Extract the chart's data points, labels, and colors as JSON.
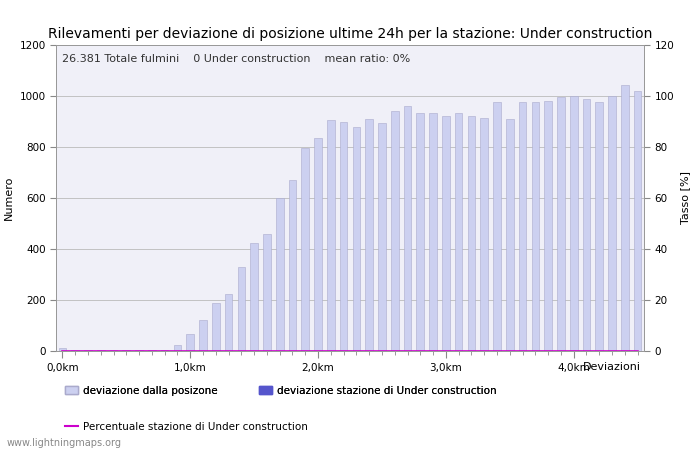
{
  "title": "Rilevamenti per deviazione di posizione ultime 24h per la stazione: Under construction",
  "subtitle_total": "26.381 Totale fulmini",
  "subtitle_station": "0 Under construction",
  "subtitle_ratio": "mean ratio: 0%",
  "xlabel": "Deviazioni",
  "ylabel_left": "Numero",
  "ylabel_right": "Tasso [%]",
  "xlim_left": -0.5,
  "xlim_right": 45.5,
  "ylim_left": [
    0,
    1200
  ],
  "ylim_right": [
    0,
    120
  ],
  "bar_values": [
    10,
    2,
    2,
    2,
    2,
    2,
    2,
    2,
    2,
    25,
    65,
    120,
    190,
    225,
    330,
    425,
    460,
    600,
    670,
    795,
    835,
    905,
    900,
    880,
    910,
    895,
    940,
    960,
    935,
    935,
    920,
    935,
    920,
    915,
    975,
    910,
    975,
    975,
    980,
    995,
    1000,
    990,
    975,
    1000,
    1045,
    1020
  ],
  "bar_color_light": "#ccd0f0",
  "bar_color_dark": "#5555cc",
  "bar_edge_color": "#aaaacc",
  "station_bar_values": [
    0,
    0,
    0,
    0,
    0,
    0,
    0,
    0,
    0,
    0,
    0,
    0,
    0,
    0,
    0,
    0,
    0,
    0,
    0,
    0,
    0,
    0,
    0,
    0,
    0,
    0,
    0,
    0,
    0,
    0,
    0,
    0,
    0,
    0,
    0,
    0,
    0,
    0,
    0,
    0,
    0,
    0,
    0,
    0,
    0,
    0
  ],
  "ratio_values": [
    0,
    0,
    0,
    0,
    0,
    0,
    0,
    0,
    0,
    0,
    0,
    0,
    0,
    0,
    0,
    0,
    0,
    0,
    0,
    0,
    0,
    0,
    0,
    0,
    0,
    0,
    0,
    0,
    0,
    0,
    0,
    0,
    0,
    0,
    0,
    0,
    0,
    0,
    0,
    0,
    0,
    0,
    0,
    0,
    0,
    0
  ],
  "xtick_positions": [
    0,
    10,
    20,
    30,
    40
  ],
  "xtick_labels": [
    "0,0km",
    "1,0km",
    "2,0km",
    "3,0km",
    "4,0km"
  ],
  "ytick_left": [
    0,
    200,
    400,
    600,
    800,
    1000,
    1200
  ],
  "ytick_right": [
    0,
    20,
    40,
    60,
    80,
    100,
    120
  ],
  "grid_color": "#bbbbbb",
  "watermark": "www.lightningmaps.org",
  "legend_label_light": "deviazione dalla posizone",
  "legend_label_dark": "deviazione stazione di Under construction",
  "legend_label_line": "Percentuale stazione di Under construction",
  "line_color": "#cc00cc",
  "background_color": "#ffffff",
  "plot_bg_color": "#f0f0f8",
  "title_fontsize": 10,
  "subtitle_fontsize": 8,
  "axis_fontsize": 8,
  "tick_fontsize": 7.5
}
